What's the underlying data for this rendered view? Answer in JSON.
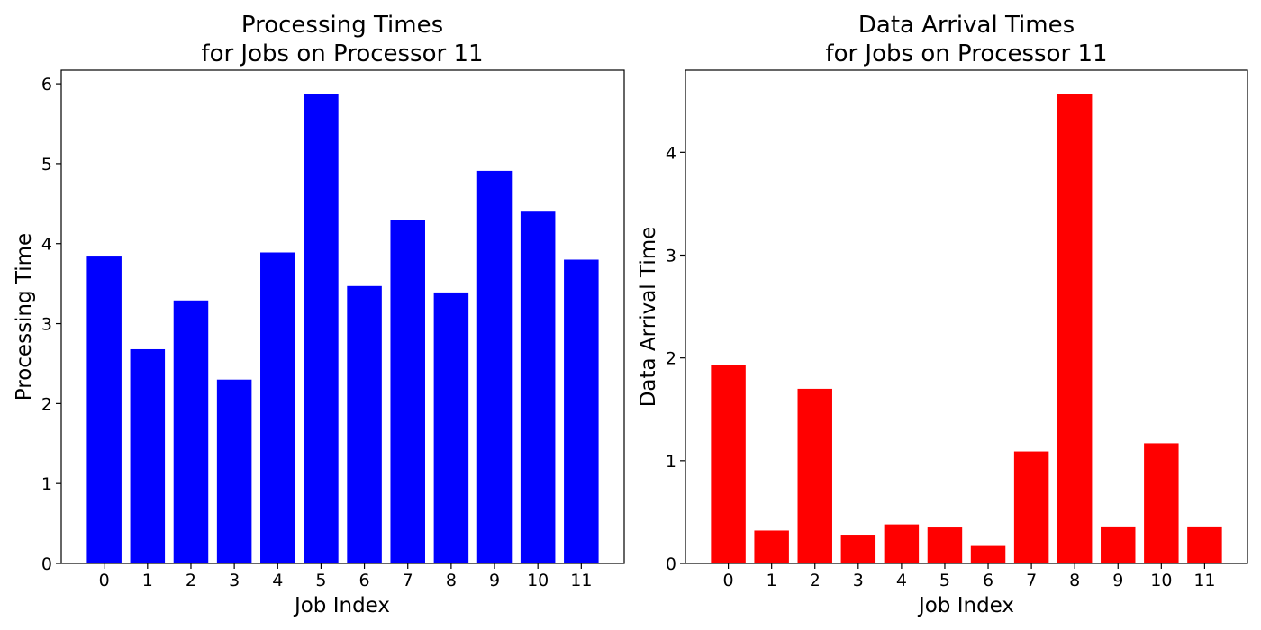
{
  "chart_data": [
    {
      "type": "bar",
      "title_lines": [
        "Processing Times",
        "for Jobs on Processor 11"
      ],
      "xlabel": "Job Index",
      "ylabel": "Processing Time",
      "categories": [
        "0",
        "1",
        "2",
        "3",
        "4",
        "5",
        "6",
        "7",
        "8",
        "9",
        "10",
        "11"
      ],
      "values": [
        3.85,
        2.68,
        3.29,
        2.3,
        3.89,
        5.87,
        3.47,
        4.29,
        3.39,
        4.91,
        4.4,
        3.8
      ],
      "ylim": [
        0,
        6.17
      ],
      "yticks": [
        0,
        1,
        2,
        3,
        4,
        5,
        6
      ],
      "color": "#0000ff",
      "grid": false,
      "legend": false
    },
    {
      "type": "bar",
      "title_lines": [
        "Data Arrival Times",
        "for Jobs on Processor 11"
      ],
      "xlabel": "Job Index",
      "ylabel": "Data Arrival Time",
      "categories": [
        "0",
        "1",
        "2",
        "3",
        "4",
        "5",
        "6",
        "7",
        "8",
        "9",
        "10",
        "11"
      ],
      "values": [
        1.93,
        0.32,
        1.7,
        0.28,
        0.38,
        0.35,
        0.17,
        1.09,
        4.57,
        0.36,
        1.17,
        0.36
      ],
      "ylim": [
        0,
        4.8
      ],
      "yticks": [
        0,
        1,
        2,
        3,
        4
      ],
      "color": "#ff0000",
      "grid": false,
      "legend": false
    }
  ]
}
